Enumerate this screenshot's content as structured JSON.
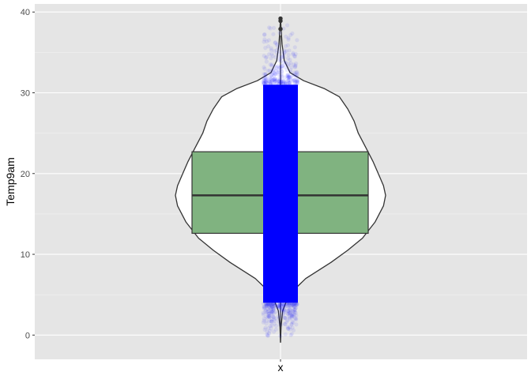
{
  "chart_data": {
    "type": "violin",
    "overlays": [
      "boxplot",
      "jitter"
    ],
    "xlabel": "x",
    "ylabel": "Temp9am",
    "categories": [
      "x"
    ],
    "ylim": [
      -3,
      41
    ],
    "yticks": [
      0,
      10,
      20,
      30,
      40
    ],
    "xticks": [
      ""
    ],
    "grid": true,
    "background": "#e5e5e5",
    "boxplot": {
      "q1": 12.6,
      "median": 17.3,
      "q3": 22.7,
      "whisker_low": -0.9,
      "whisker_high": 37.1,
      "outliers": [
        37.9,
        38.9,
        39.2
      ],
      "fill": "#80b380"
    },
    "violin": {
      "fill": "#ffffff",
      "y_range": [
        -0.9,
        39.3
      ],
      "shape": [
        {
          "y": -0.9,
          "w": 0.0
        },
        {
          "y": 1,
          "w": 0.005
        },
        {
          "y": 3,
          "w": 0.02
        },
        {
          "y": 5,
          "w": 0.08
        },
        {
          "y": 7,
          "w": 0.24
        },
        {
          "y": 9,
          "w": 0.48
        },
        {
          "y": 10.5,
          "w": 0.64
        },
        {
          "y": 12,
          "w": 0.78
        },
        {
          "y": 14,
          "w": 0.9
        },
        {
          "y": 16,
          "w": 0.98
        },
        {
          "y": 17.3,
          "w": 1.0
        },
        {
          "y": 18.5,
          "w": 0.98
        },
        {
          "y": 20,
          "w": 0.93
        },
        {
          "y": 21.5,
          "w": 0.88
        },
        {
          "y": 23,
          "w": 0.82
        },
        {
          "y": 25,
          "w": 0.74
        },
        {
          "y": 26.5,
          "w": 0.7
        },
        {
          "y": 28,
          "w": 0.64
        },
        {
          "y": 29.5,
          "w": 0.56
        },
        {
          "y": 30.5,
          "w": 0.42
        },
        {
          "y": 31.5,
          "w": 0.22
        },
        {
          "y": 32.5,
          "w": 0.09
        },
        {
          "y": 34,
          "w": 0.035
        },
        {
          "y": 36,
          "w": 0.015
        },
        {
          "y": 38,
          "w": 0.005
        },
        {
          "y": 39.3,
          "w": 0.0
        }
      ]
    },
    "jitter": {
      "color": "#0000ff",
      "dense_range": [
        4,
        31
      ],
      "point_range": [
        -0.6,
        39.3
      ]
    }
  }
}
